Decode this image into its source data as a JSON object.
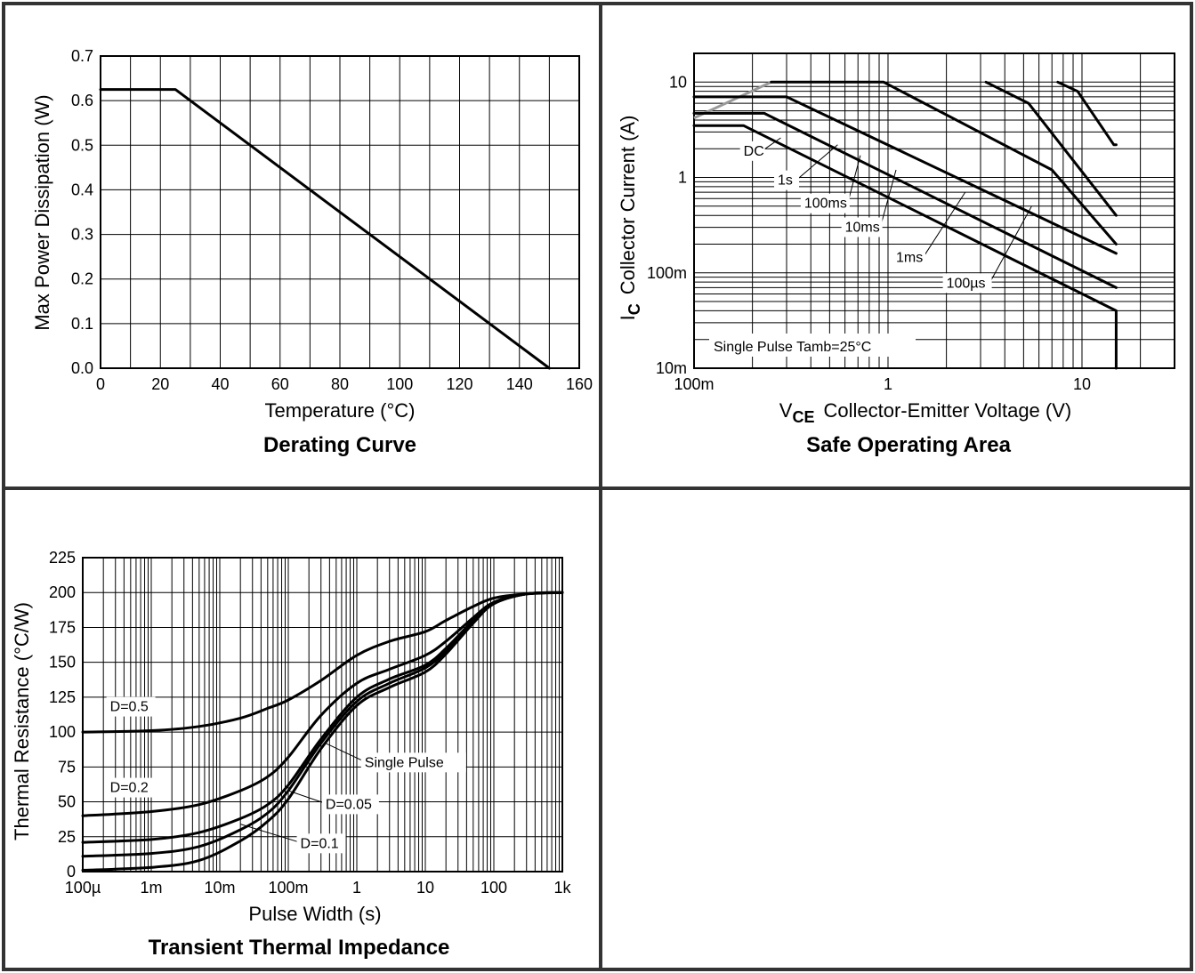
{
  "chart_data": [
    {
      "type": "line",
      "title": "Derating Curve",
      "xlabel": "Temperature (°C)",
      "ylabel": "Max Power Dissipation (W)",
      "xlim": [
        0,
        160
      ],
      "ylim": [
        0,
        0.7
      ],
      "x_ticks": [
        "0",
        "20",
        "40",
        "60",
        "80",
        "100",
        "120",
        "140",
        "160"
      ],
      "y_ticks": [
        "0.0",
        "0.1",
        "0.2",
        "0.3",
        "0.4",
        "0.5",
        "0.6",
        "0.7"
      ],
      "series": [
        {
          "x": [
            0,
            25,
            150
          ],
          "y": [
            0.625,
            0.625,
            0.0
          ]
        }
      ]
    },
    {
      "type": "line",
      "title": "Safe Operating Area",
      "xlabel": "Collector-Emitter Voltage (V)",
      "xlabel_symbol": "V",
      "xlabel_subscript": "CE",
      "ylabel": "Collector Current (A)",
      "ylabel_symbol": "I",
      "ylabel_subscript": "C",
      "x_scale": "log",
      "y_scale": "log",
      "xlim": [
        0.1,
        30
      ],
      "ylim": [
        0.01,
        20
      ],
      "x_ticks": [
        {
          "v": 0.1,
          "label": "100m"
        },
        {
          "v": 1,
          "label": "1"
        },
        {
          "v": 10,
          "label": "10"
        }
      ],
      "y_ticks": [
        {
          "v": 0.01,
          "label": "10m"
        },
        {
          "v": 0.1,
          "label": "100m"
        },
        {
          "v": 1,
          "label": "1"
        },
        {
          "v": 10,
          "label": "10"
        }
      ],
      "annotation": "Single Pulse  Tamb=25°C",
      "limit_line": {
        "x": [
          0.1,
          0.25
        ],
        "y": [
          4.2,
          10
        ],
        "color": "#999999"
      },
      "series": [
        {
          "name": "DC",
          "x": [
            0.1,
            0.18,
            15,
            15
          ],
          "y": [
            3.5,
            3.5,
            0.04,
            0.01
          ],
          "label_at": [
            0.18,
            1.7
          ],
          "leader_to": [
            0.28,
            2.6
          ]
        },
        {
          "name": "1s",
          "x": [
            0.1,
            0.23,
            15
          ],
          "y": [
            4.7,
            4.7,
            0.07
          ],
          "label_at": [
            0.27,
            0.84
          ],
          "leader_to": [
            0.55,
            2.2
          ]
        },
        {
          "name": "100ms",
          "x": [
            0.1,
            0.3,
            15
          ],
          "y": [
            7,
            7,
            0.16
          ],
          "label_at": [
            0.37,
            0.48
          ],
          "leader_to": [
            0.72,
            1.7
          ]
        },
        {
          "name": "10ms",
          "x": [
            0.25,
            0.95,
            7,
            15
          ],
          "y": [
            10,
            10,
            1.2,
            0.2
          ],
          "label_at": [
            0.6,
            0.27
          ],
          "leader_to": [
            1.1,
            1.2
          ]
        },
        {
          "name": "1ms",
          "x": [
            3.2,
            5.3,
            15
          ],
          "y": [
            10,
            6,
            0.4
          ],
          "label_at": [
            1.1,
            0.13
          ],
          "leader_to": [
            2.5,
            0.7
          ]
        },
        {
          "name": "100µs",
          "x": [
            7.5,
            9.5,
            14.6,
            15
          ],
          "y": [
            10,
            8,
            2.2,
            2.2
          ],
          "label_at": [
            2.0,
            0.07
          ],
          "leader_to": [
            5.5,
            0.5
          ]
        }
      ]
    },
    {
      "type": "line",
      "title": "Transient Thermal Impedance",
      "xlabel": "Pulse Width (s)",
      "ylabel": "Thermal Resistance (°C/W)",
      "x_scale": "log",
      "xlim": [
        0.0001,
        1000
      ],
      "ylim": [
        0,
        225
      ],
      "x_ticks": [
        {
          "v": 0.0001,
          "label": "100µ"
        },
        {
          "v": 0.001,
          "label": "1m"
        },
        {
          "v": 0.01,
          "label": "10m"
        },
        {
          "v": 0.1,
          "label": "100m"
        },
        {
          "v": 1,
          "label": "1"
        },
        {
          "v": 10,
          "label": "10"
        },
        {
          "v": 100,
          "label": "100"
        },
        {
          "v": 1000,
          "label": "1k"
        }
      ],
      "y_ticks": [
        "0",
        "25",
        "50",
        "75",
        "100",
        "125",
        "150",
        "175",
        "200",
        "225"
      ],
      "series": [
        {
          "name": "D=0.5",
          "x": [
            0.0001,
            0.001,
            0.005,
            0.02,
            0.05,
            0.1,
            0.3,
            1,
            3,
            10,
            20,
            50,
            100,
            300,
            1000
          ],
          "y": [
            100,
            101,
            104,
            110,
            117,
            123,
            137,
            155,
            165,
            172,
            180,
            190,
            196,
            199,
            200
          ],
          "label_at": [
            0.00025,
            115
          ]
        },
        {
          "name": "D=0.2",
          "x": [
            0.0001,
            0.001,
            0.005,
            0.02,
            0.05,
            0.1,
            0.3,
            1,
            3,
            10,
            20,
            50,
            100,
            300,
            1000
          ],
          "y": [
            40,
            43,
            48,
            58,
            68,
            82,
            112,
            135,
            145,
            155,
            165,
            182,
            193,
            199,
            200
          ],
          "label_at": [
            0.00025,
            57
          ]
        },
        {
          "name": "D=0.1",
          "x": [
            0.0001,
            0.001,
            0.005,
            0.02,
            0.05,
            0.1,
            0.3,
            1,
            3,
            10,
            20,
            50,
            100,
            300,
            1000
          ],
          "y": [
            21,
            23,
            28,
            38,
            48,
            62,
            95,
            125,
            138,
            148,
            160,
            180,
            193,
            199,
            200
          ],
          "label_at": [
            0.15,
            17
          ],
          "leader_to": [
            0.02,
            34
          ]
        },
        {
          "name": "D=0.05",
          "x": [
            0.0001,
            0.001,
            0.005,
            0.02,
            0.05,
            0.1,
            0.3,
            1,
            3,
            10,
            20,
            50,
            100,
            300,
            1000
          ],
          "y": [
            11,
            13,
            18,
            30,
            42,
            58,
            92,
            122,
            135,
            146,
            158,
            179,
            192,
            199,
            200
          ],
          "label_at": [
            0.35,
            45
          ],
          "leader_to": [
            0.1,
            58
          ]
        },
        {
          "name": "Single Pulse",
          "x": [
            0.0001,
            0.001,
            0.005,
            0.02,
            0.05,
            0.1,
            0.3,
            1,
            3,
            10,
            20,
            50,
            100,
            300,
            1000
          ],
          "y": [
            1,
            3,
            8,
            22,
            36,
            52,
            88,
            119,
            132,
            143,
            156,
            178,
            192,
            199,
            200
          ],
          "label_at": [
            1.3,
            75
          ],
          "leader_to": [
            0.35,
            92
          ]
        }
      ]
    }
  ]
}
